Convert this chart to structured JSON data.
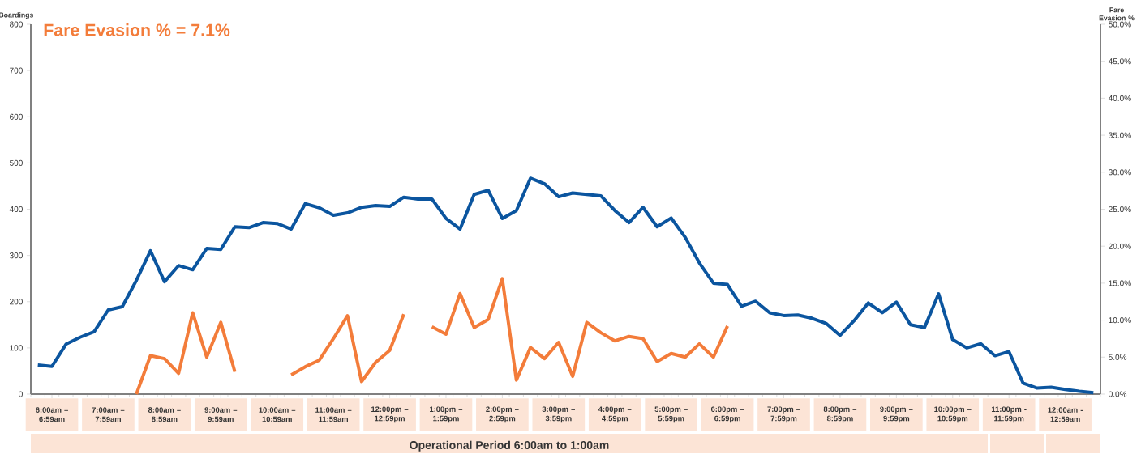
{
  "chart_data": {
    "type": "line",
    "title": "Fare Evasion % = 7.1%",
    "ylabel": "Boardings",
    "y2label": "Fare Evasion %",
    "xlabel": "Operational Period 6:00am to 1:00am",
    "categories": [
      null,
      "6:00am – 6:59am",
      null,
      null,
      null,
      "7:00am – 7:59am",
      null,
      null,
      null,
      "8:00am – 8:59am",
      null,
      null,
      null,
      "9:00am – 9:59am",
      null,
      null,
      null,
      "10:00am – 10:59am",
      null,
      null,
      null,
      "11:00am – 11:59am",
      null,
      null,
      null,
      "12:00pm – 12:59pm",
      null,
      null,
      null,
      "1:00pm – 1:59pm",
      null,
      null,
      null,
      "2:00pm – 2:59pm",
      null,
      null,
      null,
      "3:00pm – 3:59pm",
      null,
      null,
      null,
      "4:00pm – 4:59pm",
      null,
      null,
      null,
      "5:00pm – 5:59pm",
      null,
      null,
      null,
      "6:00pm – 6:59pm",
      null,
      null,
      null,
      "7:00pm – 7:59pm",
      null,
      null,
      null,
      "8:00pm – 8:59pm",
      null,
      null,
      null,
      "9:00pm – 9:59pm",
      null,
      null,
      null,
      "10:00pm – 10:59pm",
      null,
      null,
      null,
      "11:00pm - 11:59pm",
      null,
      null,
      null,
      "12:00am - 12:59am",
      null,
      null
    ],
    "ylim": [
      0,
      800
    ],
    "yticks": [
      0,
      100,
      200,
      300,
      400,
      500,
      600,
      700,
      800
    ],
    "y2lim": [
      0,
      50
    ],
    "y2ticks": [
      {
        "value": 0,
        "label": "0.0%"
      },
      {
        "value": 5,
        "label": "5.0%"
      },
      {
        "value": 10,
        "label": "10.0%"
      },
      {
        "value": 15,
        "label": "15.0%"
      },
      {
        "value": 20,
        "label": "20.0%"
      },
      {
        "value": 25,
        "label": "25.0%"
      },
      {
        "value": 30,
        "label": "30.0%"
      },
      {
        "value": 35,
        "label": "35.0%"
      },
      {
        "value": 40,
        "label": "40.0%"
      },
      {
        "value": 45,
        "label": "45.0%"
      },
      {
        "value": 50,
        "label": "50.0%"
      }
    ],
    "series": [
      {
        "color": "#0b559f",
        "values": [
          63,
          60,
          108,
          123,
          135,
          182,
          189,
          246,
          310,
          243,
          278,
          269,
          315,
          313,
          362,
          360,
          371,
          369,
          357,
          412,
          403,
          387,
          392,
          404,
          408,
          406,
          426,
          422,
          422,
          380,
          357,
          432,
          441,
          380,
          397,
          467,
          455,
          427,
          435,
          432,
          429,
          397,
          371,
          404,
          362,
          381,
          339,
          284,
          240,
          237,
          190,
          201,
          176,
          170,
          171,
          164,
          153,
          127,
          159,
          197,
          176,
          199,
          150,
          144,
          217,
          118,
          100,
          109,
          83,
          92,
          24,
          13,
          15,
          10,
          6,
          3
        ]
      },
      {
        "color": "#f37c3a",
        "axis": "y2",
        "values": [
          null,
          null,
          null,
          null,
          null,
          null,
          null,
          0.0,
          5.2,
          4.8,
          2.8,
          11.0,
          5.0,
          9.7,
          3.0,
          null,
          null,
          null,
          2.6,
          3.7,
          4.6,
          7.5,
          10.6,
          1.7,
          4.3,
          5.9,
          10.8,
          null,
          9.1,
          8.1,
          13.6,
          9.0,
          10.1,
          15.6,
          1.9,
          6.3,
          4.8,
          7.0,
          2.4,
          9.7,
          8.3,
          7.2,
          7.8,
          7.5,
          4.4,
          5.5,
          5.0,
          6.8,
          5.0,
          9.2,
          null,
          null,
          null,
          null,
          null,
          null,
          null,
          null,
          null,
          null,
          null,
          null,
          null,
          null,
          null,
          null,
          null,
          null,
          null,
          null,
          null,
          null,
          null,
          null,
          null,
          null
        ]
      }
    ]
  }
}
